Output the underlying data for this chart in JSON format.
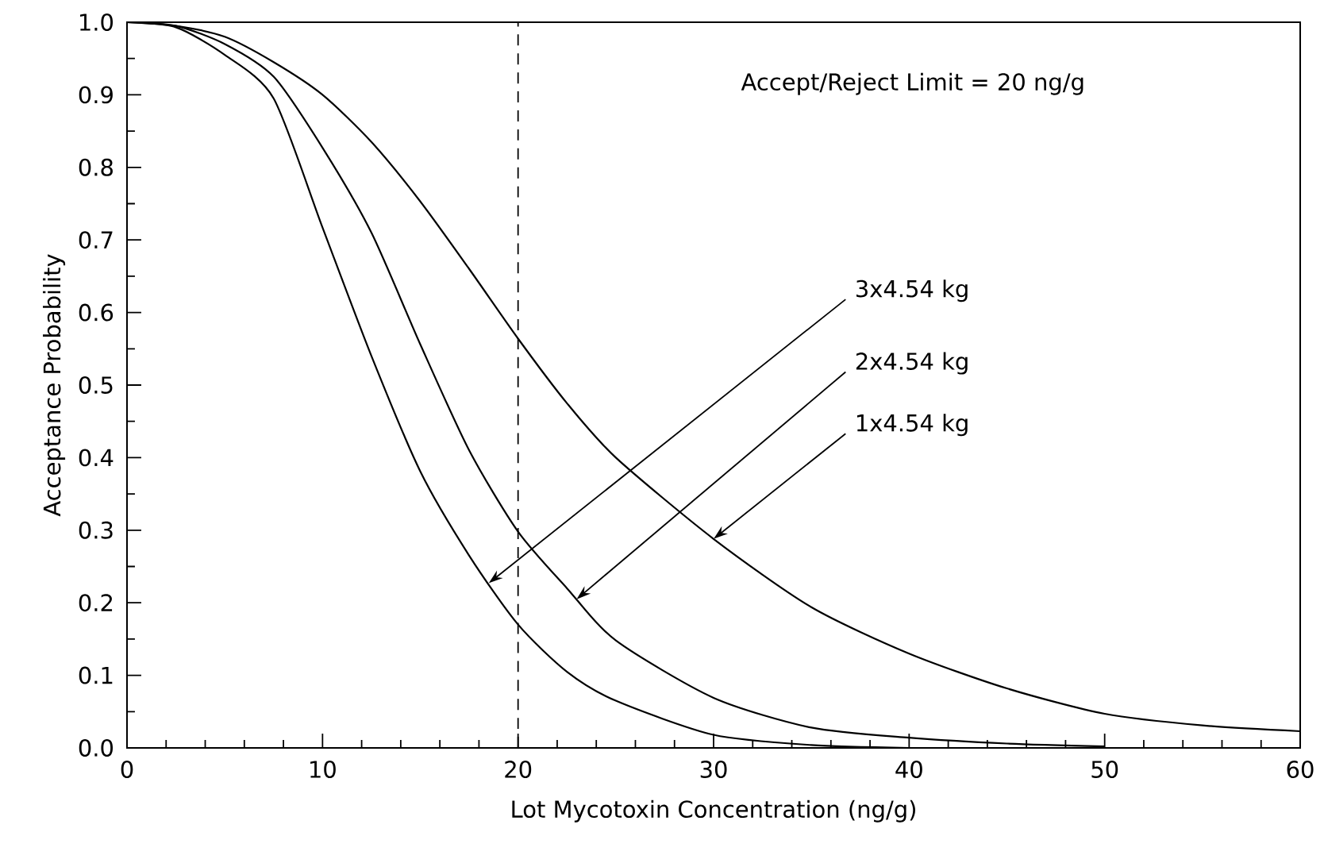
{
  "chart_data": {
    "type": "line",
    "xlabel": "Lot Mycotoxin Concentration (ng/g)",
    "ylabel": "Acceptance Probability",
    "xlim": [
      0,
      60
    ],
    "ylim": [
      0,
      1
    ],
    "xticks": [
      0,
      {
        "value": 2,
        "label": null
      },
      {
        "value": 4,
        "label": null
      },
      {
        "value": 6,
        "label": null
      },
      {
        "value": 8,
        "label": null
      },
      10,
      {
        "value": 12,
        "label": null
      },
      {
        "value": 14,
        "label": null
      },
      {
        "value": 16,
        "label": null
      },
      {
        "value": 18,
        "label": null
      },
      20,
      {
        "value": 22,
        "label": null
      },
      {
        "value": 24,
        "label": null
      },
      {
        "value": 26,
        "label": null
      },
      {
        "value": 28,
        "label": null
      },
      30,
      {
        "value": 32,
        "label": null
      },
      {
        "value": 34,
        "label": null
      },
      {
        "value": 36,
        "label": null
      },
      {
        "value": 38,
        "label": null
      },
      40,
      {
        "value": 42,
        "label": null
      },
      {
        "value": 44,
        "label": null
      },
      {
        "value": 46,
        "label": null
      },
      {
        "value": 48,
        "label": null
      },
      50,
      {
        "value": 52,
        "label": null
      },
      {
        "value": 54,
        "label": null
      },
      {
        "value": 56,
        "label": null
      },
      {
        "value": 58,
        "label": null
      },
      60
    ],
    "yticks": [
      {
        "value": 0,
        "label": "0.0"
      },
      {
        "value": 0.05,
        "label": null
      },
      0.1,
      {
        "value": 0.15,
        "label": null
      },
      0.2,
      {
        "value": 0.25,
        "label": null
      },
      0.3,
      {
        "value": 0.35,
        "label": null
      },
      0.4,
      {
        "value": 0.45,
        "label": null
      },
      0.5,
      {
        "value": 0.55,
        "label": null
      },
      0.6,
      {
        "value": 0.65,
        "label": null
      },
      0.7,
      {
        "value": 0.75,
        "label": null
      },
      0.8,
      {
        "value": 0.85,
        "label": null
      },
      0.9,
      {
        "value": 0.95,
        "label": null
      },
      {
        "value": 1,
        "label": "1.0"
      }
    ],
    "grid": false,
    "series": [
      {
        "color": "#000000",
        "x": [
          0,
          2.5,
          5,
          7.5,
          10,
          12.5,
          15,
          17.5,
          20,
          22.5,
          25,
          30,
          35,
          40,
          45,
          50,
          55,
          60
        ],
        "values": [
          1.0,
          0.995,
          0.98,
          0.945,
          0.9,
          0.835,
          0.753,
          0.66,
          0.564,
          0.475,
          0.4,
          0.288,
          0.194,
          0.13,
          0.082,
          0.047,
          0.031,
          0.023
        ]
      },
      {
        "color": "#000000",
        "x": [
          0,
          2.5,
          5,
          7.5,
          10,
          12.5,
          15,
          17.5,
          20,
          22.5,
          25,
          30,
          35,
          40,
          45,
          50
        ],
        "values": [
          1.0,
          0.995,
          0.97,
          0.925,
          0.827,
          0.71,
          0.556,
          0.41,
          0.298,
          0.22,
          0.148,
          0.069,
          0.028,
          0.014,
          0.006,
          0.002
        ]
      },
      {
        "color": "#000000",
        "x": [
          0,
          2.5,
          5,
          7.5,
          10,
          12.5,
          15,
          17.5,
          20,
          22.5,
          25,
          30,
          35,
          40
        ],
        "values": [
          1.0,
          0.993,
          0.955,
          0.895,
          0.717,
          0.54,
          0.381,
          0.265,
          0.17,
          0.105,
          0.065,
          0.018,
          0.004,
          0.0
        ]
      }
    ],
    "ref_lines": [
      {
        "axis": "x",
        "value": 20,
        "color": "#000000",
        "line_style": "dashed"
      }
    ],
    "annotations": [
      "Accept/Reject Limit = 20 ng/g",
      {
        "text": "3x4.54 kg",
        "x": 18.5,
        "y": 0.227
      },
      {
        "text": "2x4.54 kg",
        "x": 23,
        "y": 0.205
      },
      {
        "text": "1x4.54 kg",
        "x": 30,
        "y": 0.288
      }
    ]
  }
}
